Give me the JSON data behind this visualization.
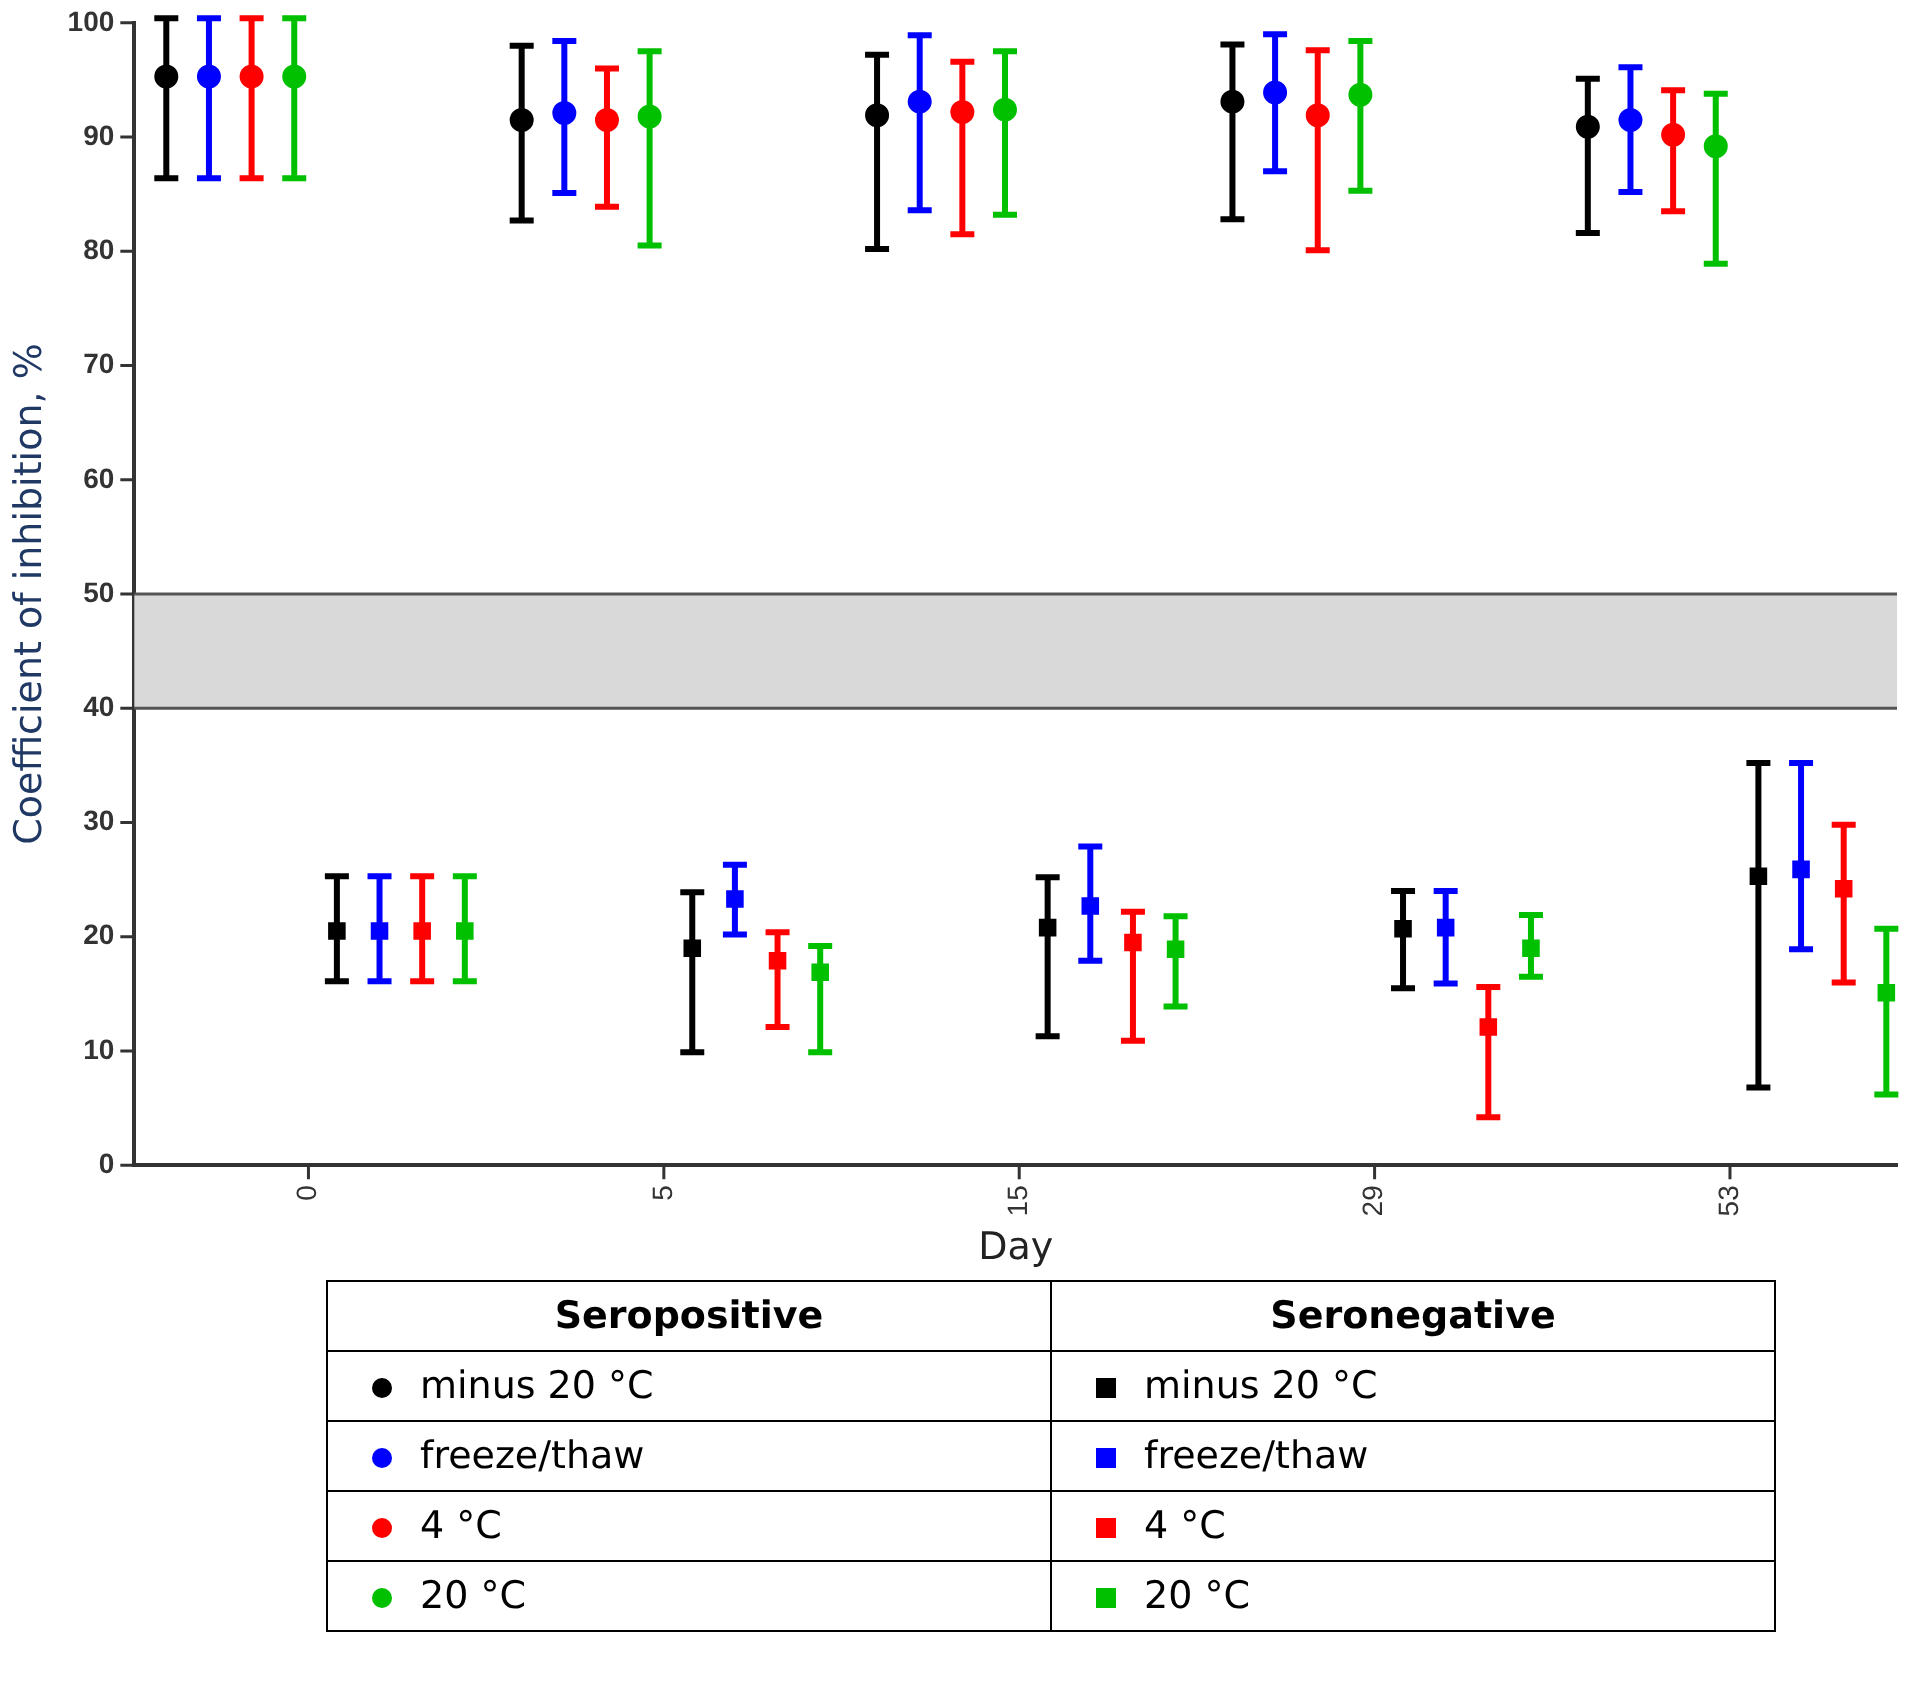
{
  "chart_data": {
    "type": "scatter",
    "xlabel": "Day",
    "ylabel": "Coefficient of inhibition, %",
    "categories": [
      "0",
      "5",
      "15",
      "29",
      "53"
    ],
    "ylim": [
      0,
      100
    ],
    "yticks": [
      0,
      10,
      20,
      30,
      40,
      50,
      60,
      70,
      80,
      90,
      100
    ],
    "legend": "bottom",
    "annotations": [
      "Seropositive",
      "Seronegative"
    ],
    "bands": [
      {
        "axis": "y",
        "from": 40,
        "to": 50,
        "color": "#d9d9d9"
      }
    ],
    "series": [
      {
        "name": "minus 20 °C",
        "color": "#000000",
        "marker": "circle",
        "values": [
          95.3,
          91.5,
          91.9,
          93.1,
          90.9
        ],
        "errors": [
          [
            86.4,
            100.4
          ],
          [
            82.7,
            98
          ],
          [
            80.2,
            97.2
          ],
          [
            82.8,
            98.1
          ],
          [
            81.6,
            95.1
          ]
        ]
      },
      {
        "name": "freeze/thaw",
        "color": "#0000ff",
        "marker": "circle",
        "values": [
          95.3,
          92.1,
          93.1,
          93.9,
          91.5
        ],
        "errors": [
          [
            86.4,
            100.4
          ],
          [
            85.1,
            98.4
          ],
          [
            83.6,
            98.9
          ],
          [
            87,
            99
          ],
          [
            85.2,
            96.1
          ]
        ]
      },
      {
        "name": "4 °C",
        "color": "#ff0000",
        "marker": "circle",
        "values": [
          95.3,
          91.5,
          92.2,
          91.9,
          90.2
        ],
        "errors": [
          [
            86.4,
            100.4
          ],
          [
            83.9,
            96
          ],
          [
            81.5,
            96.6
          ],
          [
            80.1,
            97.6
          ],
          [
            83.5,
            94.1
          ]
        ]
      },
      {
        "name": "20 °C",
        "color": "#00c000",
        "marker": "circle",
        "values": [
          95.3,
          91.8,
          92.4,
          93.7,
          89.2
        ],
        "errors": [
          [
            86.4,
            100.4
          ],
          [
            80.5,
            97.5
          ],
          [
            83.2,
            97.5
          ],
          [
            85.3,
            98.4
          ],
          [
            78.9,
            93.8
          ]
        ]
      },
      {
        "name": "minus 20 °C",
        "color": "#000000",
        "marker": "square",
        "values": [
          20.5,
          19,
          20.8,
          20.7,
          25.3
        ],
        "errors": [
          [
            16.1,
            25.3
          ],
          [
            9.9,
            23.9
          ],
          [
            11.3,
            25.2
          ],
          [
            15.5,
            24
          ],
          [
            6.8,
            35.2
          ]
        ]
      },
      {
        "name": "freeze/thaw",
        "color": "#0000ff",
        "marker": "square",
        "values": [
          20.5,
          23.3,
          22.7,
          20.8,
          25.9
        ],
        "errors": [
          [
            16.1,
            25.3
          ],
          [
            20.2,
            26.3
          ],
          [
            17.9,
            27.9
          ],
          [
            15.9,
            24
          ],
          [
            18.9,
            35.2
          ]
        ]
      },
      {
        "name": "4 °C",
        "color": "#ff0000",
        "marker": "square",
        "values": [
          20.5,
          17.9,
          19.5,
          12.1,
          24.2
        ],
        "errors": [
          [
            16.1,
            25.3
          ],
          [
            12.1,
            20.4
          ],
          [
            10.9,
            22.2
          ],
          [
            4.2,
            15.6
          ],
          [
            16,
            29.8
          ]
        ]
      },
      {
        "name": "20 °C",
        "color": "#00c000",
        "marker": "square",
        "values": [
          20.5,
          16.9,
          18.9,
          19,
          15.1
        ],
        "errors": [
          [
            16.1,
            25.3
          ],
          [
            9.9,
            19.2
          ],
          [
            13.9,
            21.8
          ],
          [
            16.5,
            21.9
          ],
          [
            6.2,
            20.7
          ]
        ]
      }
    ]
  }
}
